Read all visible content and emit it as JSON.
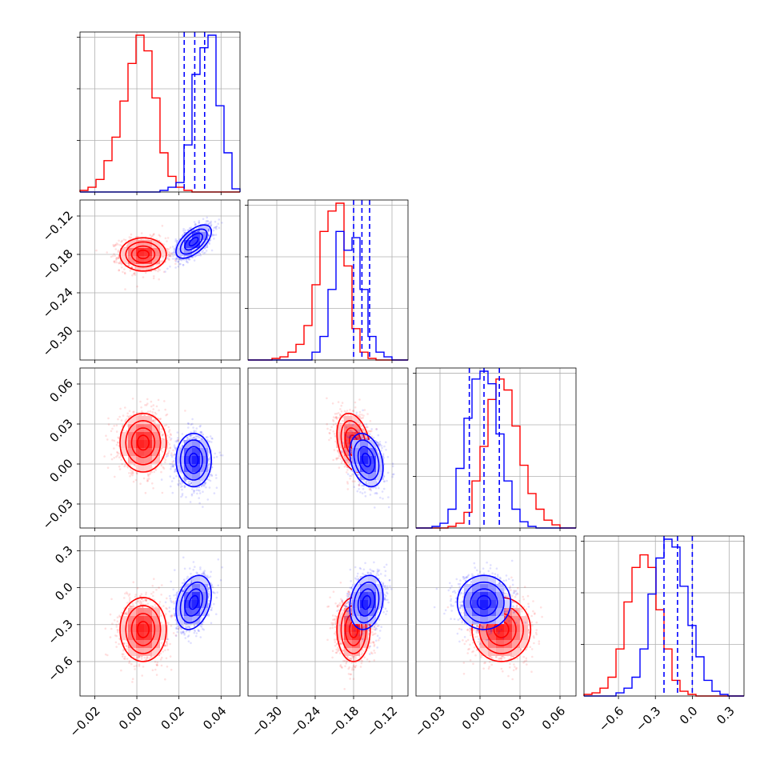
{
  "chart_data": {
    "type": "corner",
    "grid": true,
    "dimensions": [
      {
        "range": [
          -0.027,
          0.049
        ],
        "ticks": [
          -0.02,
          0.0,
          0.02,
          0.04
        ],
        "tick_labels": [
          "−0.02",
          "0.00",
          "0.02",
          "0.04"
        ]
      },
      {
        "range": [
          -0.345,
          -0.095
        ],
        "ticks": [
          -0.3,
          -0.24,
          -0.18,
          -0.12
        ],
        "tick_labels": [
          "−0.30",
          "−0.24",
          "−0.18",
          "−0.12"
        ]
      },
      {
        "range": [
          -0.048,
          0.072
        ],
        "ticks": [
          -0.03,
          0.0,
          0.03,
          0.06
        ],
        "tick_labels": [
          "−0.03",
          "0.00",
          "0.03",
          "0.06"
        ]
      },
      {
        "range": [
          -0.88,
          0.42
        ],
        "ticks": [
          -0.6,
          -0.3,
          0.0,
          0.3
        ],
        "tick_labels": [
          "−0.6",
          "−0.3",
          "0.0",
          "0.3"
        ]
      }
    ],
    "series": [
      {
        "color": "#ff0000",
        "mean": [
          0.003,
          -0.18,
          0.016,
          -0.34
        ],
        "sd": [
          0.0055,
          0.013,
          0.011,
          0.13
        ],
        "correlation": [
          [
            1,
            0,
            0,
            0
          ],
          [
            0,
            1,
            -0.3,
            0
          ],
          [
            0,
            -0.3,
            1,
            0
          ],
          [
            0,
            0,
            0,
            1
          ]
        ]
      },
      {
        "color": "#0000ff",
        "mean": [
          0.027,
          -0.16,
          0.003,
          -0.12
        ],
        "sd": [
          0.0042,
          0.013,
          0.01,
          0.11
        ],
        "correlation": [
          [
            1,
            0.6,
            0,
            0.3
          ],
          [
            0.6,
            1,
            -0.3,
            0.2
          ],
          [
            0,
            -0.3,
            1,
            0
          ],
          [
            0.3,
            0.2,
            0,
            1
          ]
        ]
      }
    ],
    "histograms": [
      {
        "dim": 0,
        "edges": [
          -0.027,
          0.049
        ],
        "bins": 20,
        "series": [
          {
            "color": "#ff0000",
            "counts": [
              0.01,
              0.03,
              0.08,
              0.2,
              0.35,
              0.58,
              0.82,
              1.0,
              0.9,
              0.6,
              0.25,
              0.1,
              0.03,
              0.01,
              0,
              0,
              0,
              0,
              0,
              0
            ]
          },
          {
            "color": "#0000ff",
            "counts": [
              0,
              0,
              0,
              0,
              0,
              0,
              0,
              0,
              0,
              0,
              0.01,
              0.03,
              0.06,
              0.3,
              0.75,
              0.92,
              1.0,
              0.55,
              0.25,
              0.02
            ]
          }
        ],
        "quantile_lines": [
          0.0225,
          0.0275,
          0.0322
        ],
        "quantile_color": "#0000ff"
      },
      {
        "dim": 1,
        "edges": [
          -0.345,
          -0.095
        ],
        "bins": 20,
        "series": [
          {
            "color": "#ff0000",
            "counts": [
              0,
              0,
              0,
              0.01,
              0.02,
              0.05,
              0.1,
              0.22,
              0.48,
              0.82,
              0.95,
              1.0,
              0.6,
              0.2,
              0.05,
              0.01,
              0,
              0,
              0,
              0
            ]
          },
          {
            "color": "#0000ff",
            "counts": [
              0,
              0,
              0,
              0,
              0,
              0,
              0,
              0,
              0.05,
              0.15,
              0.45,
              0.82,
              0.7,
              0.78,
              0.45,
              0.15,
              0.05,
              0.02,
              0,
              0
            ]
          }
        ],
        "quantile_lines": [
          -0.18,
          -0.167,
          -0.155
        ],
        "quantile_color": "#0000ff"
      },
      {
        "dim": 2,
        "edges": [
          -0.048,
          0.072
        ],
        "bins": 20,
        "series": [
          {
            "color": "#ff0000",
            "counts": [
              0,
              0,
              0,
              0,
              0.01,
              0.03,
              0.1,
              0.3,
              0.52,
              0.82,
              0.95,
              0.88,
              0.65,
              0.4,
              0.22,
              0.12,
              0.05,
              0.02,
              0,
              0
            ]
          },
          {
            "color": "#0000ff",
            "counts": [
              0,
              0,
              0.01,
              0.03,
              0.12,
              0.38,
              0.7,
              0.95,
              1.0,
              0.92,
              0.6,
              0.3,
              0.12,
              0.04,
              0.01,
              0,
              0,
              0,
              0,
              0
            ]
          }
        ],
        "quantile_lines": [
          -0.008,
          0.003,
          0.0145
        ],
        "quantile_color": "#0000ff"
      },
      {
        "dim": 3,
        "edges": [
          -0.88,
          0.42
        ],
        "bins": 20,
        "series": [
          {
            "color": "#ff0000",
            "counts": [
              0.01,
              0.02,
              0.05,
              0.12,
              0.3,
              0.6,
              0.82,
              0.9,
              0.82,
              0.55,
              0.3,
              0.1,
              0.03,
              0.01,
              0,
              0,
              0,
              0,
              0,
              0
            ]
          },
          {
            "color": "#0000ff",
            "counts": [
              0,
              0,
              0,
              0,
              0.02,
              0.05,
              0.12,
              0.3,
              0.65,
              0.88,
              1.0,
              0.95,
              0.7,
              0.45,
              0.25,
              0.1,
              0.03,
              0.01,
              0,
              0
            ]
          }
        ],
        "quantile_lines": [
          -0.23,
          -0.12,
          0.0
        ],
        "quantile_color": "#0000ff"
      }
    ],
    "contour_levels_sigma": [
      0.5,
      1.0,
      1.5,
      2.0
    ],
    "histogram_y_ticks": 3
  }
}
